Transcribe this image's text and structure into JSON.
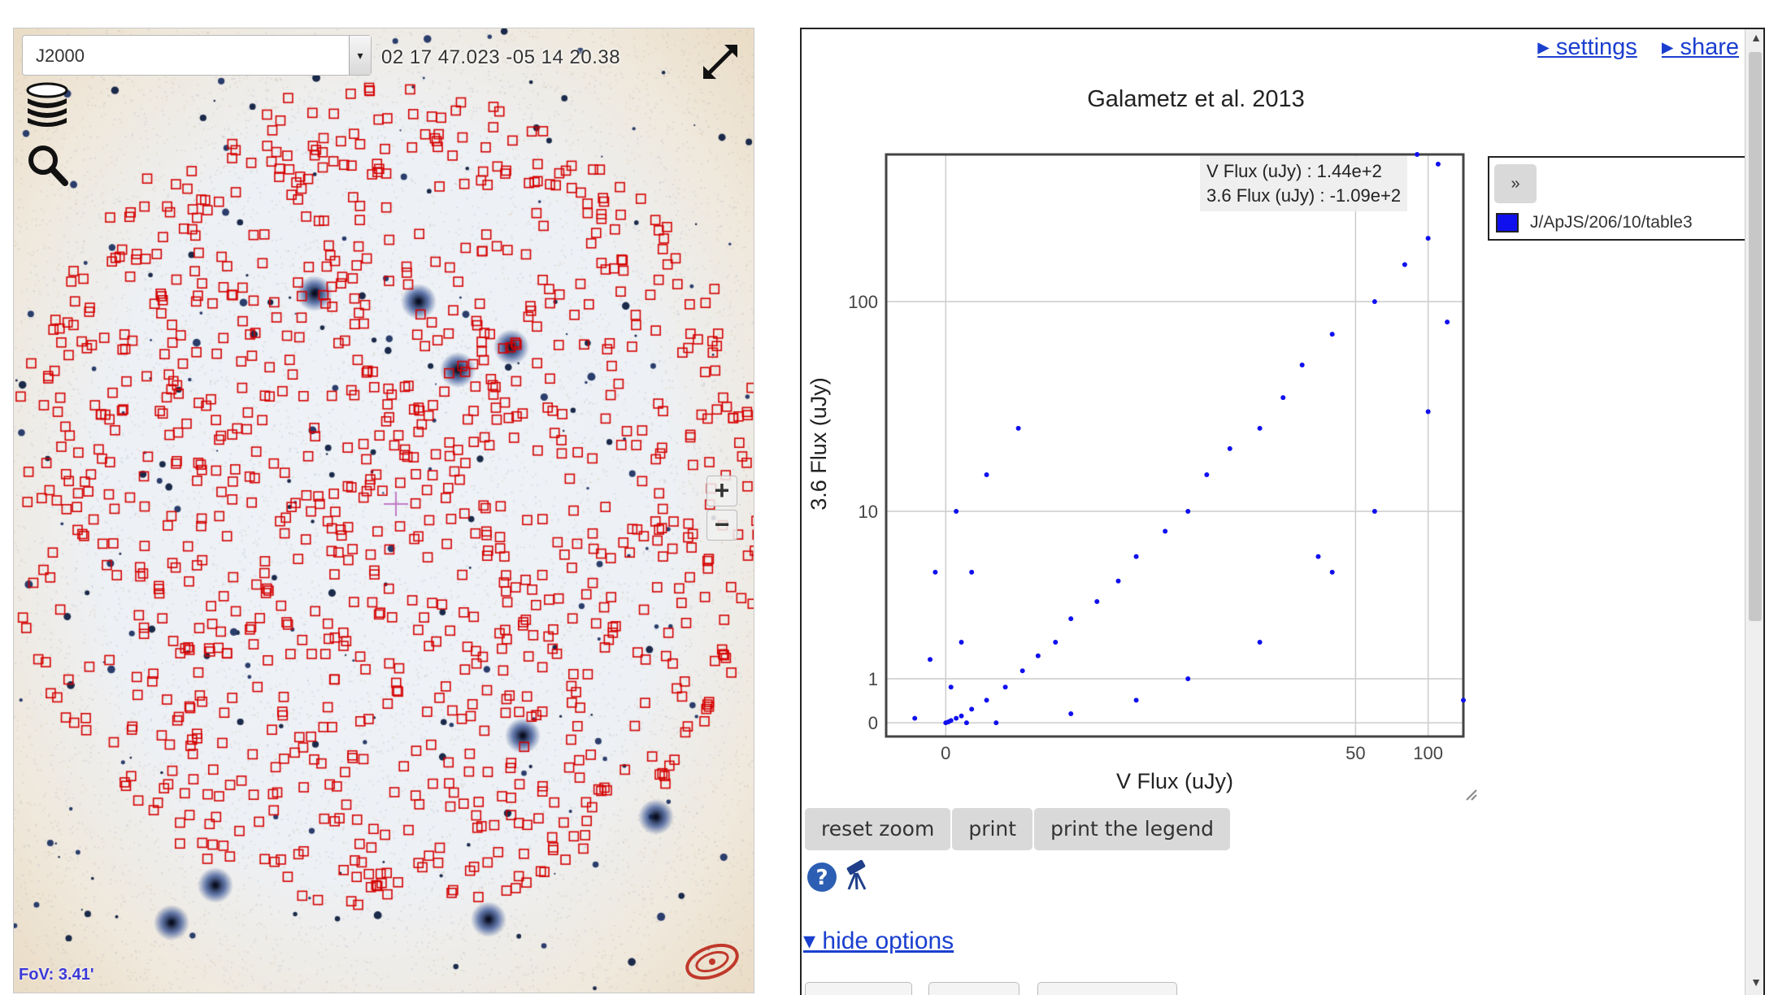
{
  "viewer": {
    "frame": "J2000",
    "coordinates": "02 17 47.023 -05 14 20.38",
    "fov": "FoV: 3.41'",
    "zoom_in": "+",
    "zoom_out": "−",
    "icons": [
      "layers-icon",
      "search-icon",
      "fullscreen-icon",
      "cds-logo"
    ]
  },
  "panel": {
    "settings_link": "▸ settings",
    "share_link": "▸ share",
    "tooltip": {
      "line1": "V Flux (uJy) : 1.44e+2",
      "line2": "3.6 Flux (uJy) : -1.09e+2"
    },
    "legend": {
      "toggle": "»",
      "label": "J/ApJS/206/10/table3",
      "color": "#1010ee"
    },
    "buttons": {
      "reset_zoom": "reset zoom",
      "print": "print",
      "print_legend": "print the legend"
    },
    "hide_options": "▾ hide options"
  },
  "chart_data": {
    "type": "scatter",
    "title": "Galametz et al. 2013",
    "xlabel": "V Flux (uJy)",
    "ylabel": "3.6 Flux (uJy)",
    "x_scale": "asinh",
    "y_scale": "asinh",
    "x_ticks": [
      0,
      50,
      100
    ],
    "y_ticks": [
      0,
      1,
      10,
      100
    ],
    "xlim": [
      -1.2,
      140
    ],
    "ylim": [
      -0.3,
      500
    ],
    "grid": true,
    "legend_position": "right",
    "series": [
      {
        "name": "J/ApJS/206/10/table3",
        "color": "#1010ee",
        "points": [
          [
            0.05,
            0.02
          ],
          [
            0.1,
            0.05
          ],
          [
            0.2,
            0.1
          ],
          [
            0.3,
            0.15
          ],
          [
            0.5,
            0.3
          ],
          [
            0.8,
            0.5
          ],
          [
            1.2,
            0.8
          ],
          [
            1.6,
            1.2
          ],
          [
            2.0,
            1.6
          ],
          [
            2.5,
            2.0
          ],
          [
            3.0,
            2.8
          ],
          [
            4.0,
            3.5
          ],
          [
            5.0,
            4.5
          ],
          [
            6.0,
            6.0
          ],
          [
            8.0,
            8.0
          ],
          [
            10,
            10
          ],
          [
            12,
            15
          ],
          [
            15,
            20
          ],
          [
            20,
            25
          ],
          [
            25,
            35
          ],
          [
            30,
            50
          ],
          [
            40,
            70
          ],
          [
            60,
            100
          ],
          [
            80,
            150
          ],
          [
            100,
            200
          ],
          [
            0.1,
            0.8
          ],
          [
            0.3,
            2.0
          ],
          [
            0.5,
            5.0
          ],
          [
            0.2,
            10
          ],
          [
            0.8,
            15
          ],
          [
            1.5,
            25
          ],
          [
            3.0,
            0.2
          ],
          [
            6.0,
            0.5
          ],
          [
            10,
            1.0
          ],
          [
            20,
            2.0
          ],
          [
            40,
            5.0
          ],
          [
            60,
            10
          ],
          [
            90,
            500
          ],
          [
            110,
            450
          ],
          [
            140,
            0.5
          ],
          [
            100,
            30
          ],
          [
            120,
            80
          ],
          [
            35,
            6.0
          ],
          [
            -0.3,
            1.5
          ],
          [
            -0.6,
            0.1
          ],
          [
            -0.2,
            5.0
          ],
          [
            0.0,
            0.0
          ],
          [
            0.4,
            0.0
          ],
          [
            1.0,
            0.0
          ]
        ]
      }
    ]
  }
}
